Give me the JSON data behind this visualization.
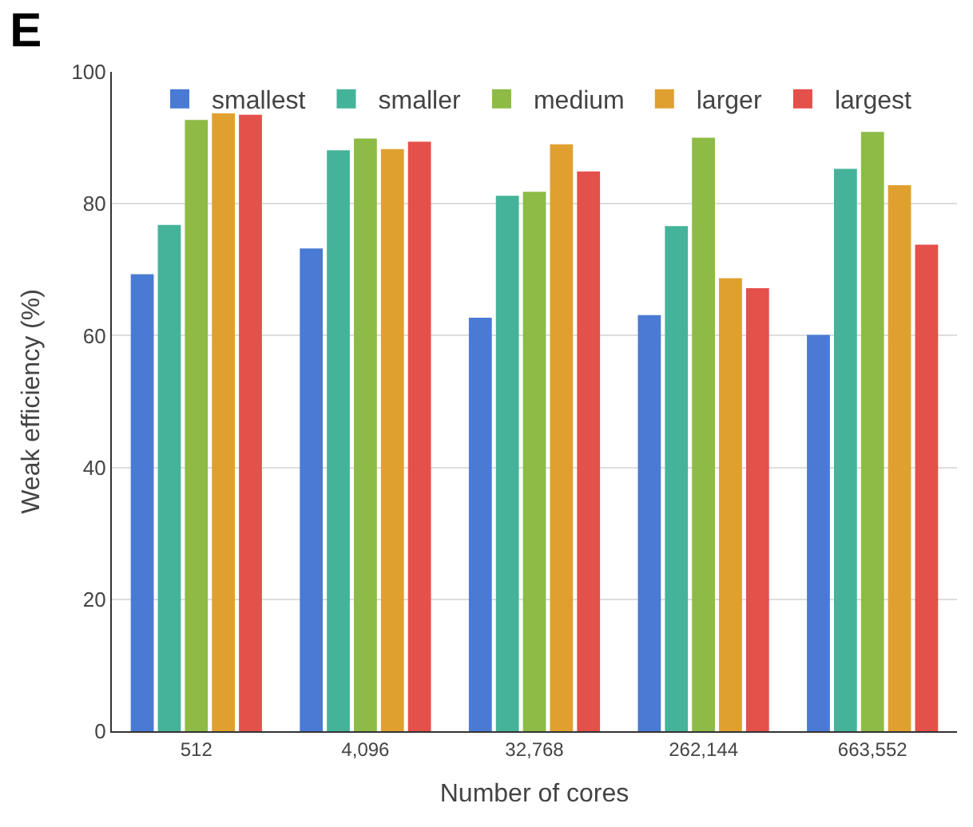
{
  "chart_data": {
    "type": "bar",
    "title": "E",
    "xlabel": "Number of cores",
    "ylabel": "Weak efficiency (%)",
    "categories": [
      "512",
      "4,096",
      "32,768",
      "262,144",
      "663,552"
    ],
    "series": [
      {
        "name": "smallest",
        "color": "#4a7bd4",
        "values": [
          69.3,
          73.2,
          62.7,
          63.1,
          60.1
        ]
      },
      {
        "name": "smaller",
        "color": "#45b39a",
        "values": [
          76.8,
          88.1,
          81.2,
          76.6,
          85.3
        ]
      },
      {
        "name": "medium",
        "color": "#8dbb45",
        "values": [
          92.7,
          89.9,
          81.8,
          90.0,
          90.9
        ]
      },
      {
        "name": "larger",
        "color": "#e0a030",
        "values": [
          93.7,
          88.3,
          89.0,
          68.7,
          82.8
        ]
      },
      {
        "name": "largest",
        "color": "#e4504a",
        "values": [
          93.5,
          89.4,
          84.9,
          67.2,
          73.8
        ]
      }
    ],
    "ylim": [
      0,
      100
    ],
    "yticks": [
      0,
      20,
      40,
      60,
      80,
      100
    ],
    "grid": "y",
    "legend": "top"
  }
}
